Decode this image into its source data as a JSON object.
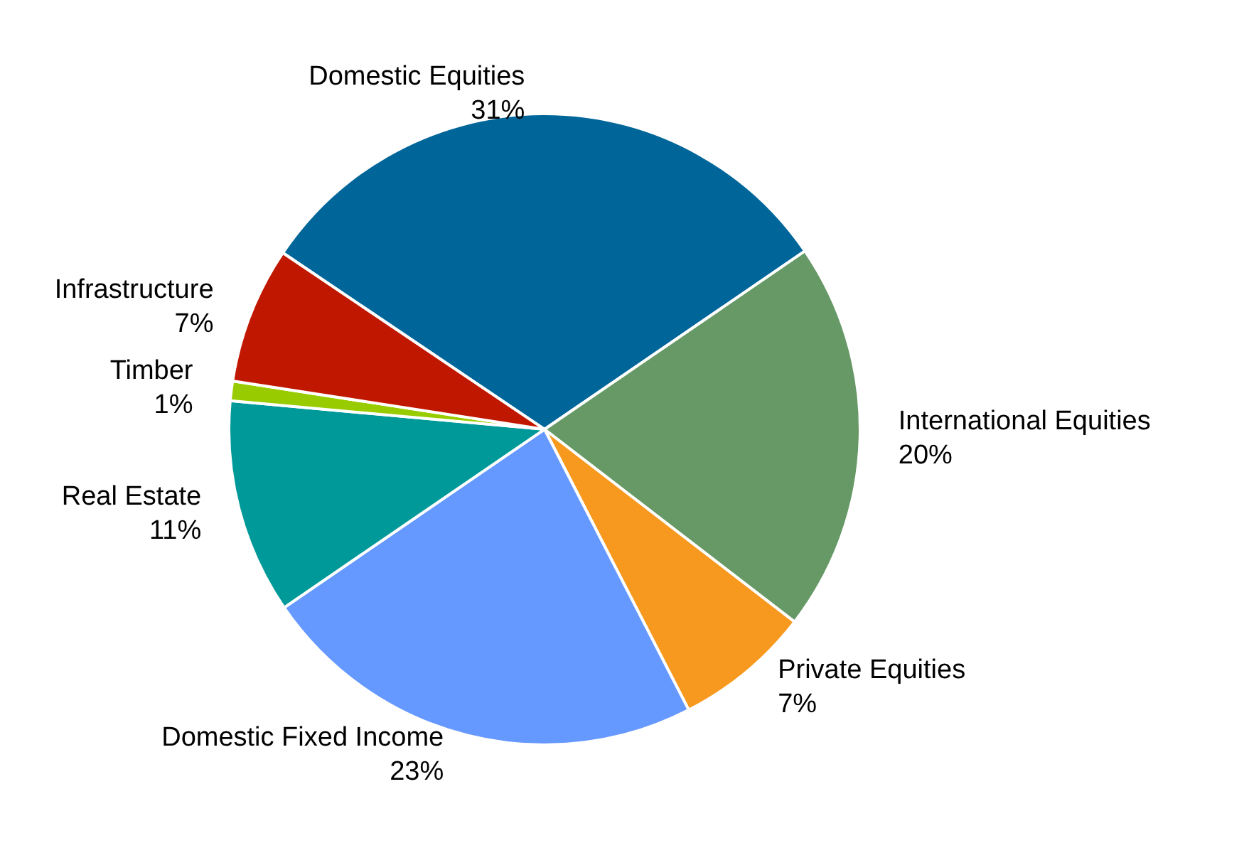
{
  "chart_data": {
    "type": "pie",
    "categories": [
      "Domestic Equities",
      "International Equities",
      "Private Equities",
      "Domestic Fixed Income",
      "Real Estate",
      "Timber",
      "Infrastructure"
    ],
    "values": [
      31,
      20,
      7,
      23,
      11,
      1,
      7
    ],
    "value_labels": [
      "31%",
      "20%",
      "7%",
      "23%",
      "11%",
      "1%",
      "7%"
    ],
    "colors": [
      "#006699",
      "#669966",
      "#f7991e",
      "#6699ff",
      "#009999",
      "#99cc00",
      "#c01800"
    ],
    "legend": false
  }
}
